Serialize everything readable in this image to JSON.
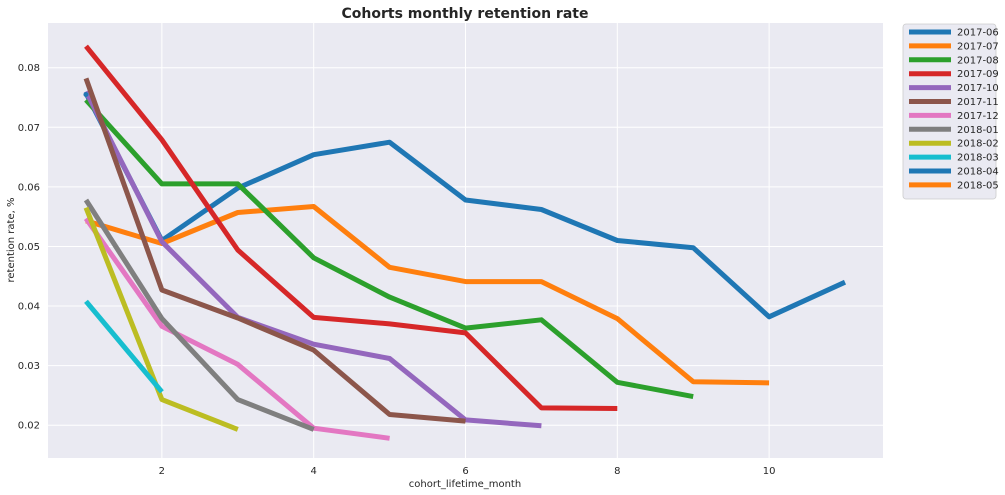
{
  "chart_data": {
    "type": "line",
    "title": "Cohorts monthly retention rate",
    "xlabel": "cohort_lifetime_month",
    "ylabel": "retention rate, %",
    "xlim": [
      0.5,
      11.5
    ],
    "ylim": [
      0.0145,
      0.0875
    ],
    "xticks": [
      2,
      4,
      6,
      8,
      10
    ],
    "yticks": [
      0.02,
      0.03,
      0.04,
      0.05,
      0.06,
      0.07,
      0.08
    ],
    "grid": true,
    "legend_position": "outside-top-right",
    "series": [
      {
        "name": "2017-06",
        "color": "#1f77b4",
        "x": [
          1,
          2,
          3,
          4,
          5,
          6,
          7,
          8,
          9,
          10,
          11
        ],
        "values": [
          0.0757,
          0.051,
          0.0598,
          0.0654,
          0.0675,
          0.0578,
          0.0562,
          0.051,
          0.0498,
          0.0382,
          0.044
        ]
      },
      {
        "name": "2017-07",
        "color": "#ff7f0e",
        "x": [
          1,
          2,
          3,
          4,
          5,
          6,
          7,
          8,
          9,
          10
        ],
        "values": [
          0.0543,
          0.0505,
          0.0557,
          0.0567,
          0.0465,
          0.0441,
          0.0441,
          0.0379,
          0.0273,
          0.0271
        ]
      },
      {
        "name": "2017-08",
        "color": "#2ca02c",
        "x": [
          1,
          2,
          3,
          4,
          5,
          6,
          7,
          8,
          9
        ],
        "values": [
          0.0746,
          0.0605,
          0.0605,
          0.0481,
          0.0415,
          0.0363,
          0.0377,
          0.0272,
          0.0248
        ]
      },
      {
        "name": "2017-09",
        "color": "#d62728",
        "x": [
          1,
          2,
          3,
          4,
          5,
          6,
          7,
          8
        ],
        "values": [
          0.0836,
          0.0679,
          0.0494,
          0.0381,
          0.037,
          0.0355,
          0.0229,
          0.0228
        ]
      },
      {
        "name": "2017-10",
        "color": "#9467bd",
        "x": [
          1,
          2,
          3,
          4,
          5,
          6,
          7
        ],
        "values": [
          0.076,
          0.0508,
          0.0381,
          0.0336,
          0.0312,
          0.0209,
          0.0199
        ]
      },
      {
        "name": "2017-11",
        "color": "#8c564b",
        "x": [
          1,
          2,
          3,
          4,
          5,
          6
        ],
        "values": [
          0.0782,
          0.0427,
          0.038,
          0.0326,
          0.0218,
          0.0207
        ]
      },
      {
        "name": "2017-12",
        "color": "#e377c2",
        "x": [
          1,
          2,
          3,
          4,
          5
        ],
        "values": [
          0.0547,
          0.0366,
          0.0302,
          0.0195,
          0.0178
        ]
      },
      {
        "name": "2018-01",
        "color": "#7f7f7f",
        "x": [
          1,
          2,
          3,
          4
        ],
        "values": [
          0.0578,
          0.0379,
          0.0243,
          0.0193
        ]
      },
      {
        "name": "2018-02",
        "color": "#bcbd22",
        "x": [
          1,
          2,
          3
        ],
        "values": [
          0.0565,
          0.0243,
          0.0193
        ]
      },
      {
        "name": "2018-03",
        "color": "#17becf",
        "x": [
          1,
          2
        ],
        "values": [
          0.0408,
          0.0256
        ]
      },
      {
        "name": "2018-04",
        "color": "#1f77b4",
        "x": [
          1
        ],
        "values": [
          0.0755
        ]
      },
      {
        "name": "2018-05",
        "color": "#ff7f0e",
        "x": [],
        "values": []
      }
    ]
  }
}
